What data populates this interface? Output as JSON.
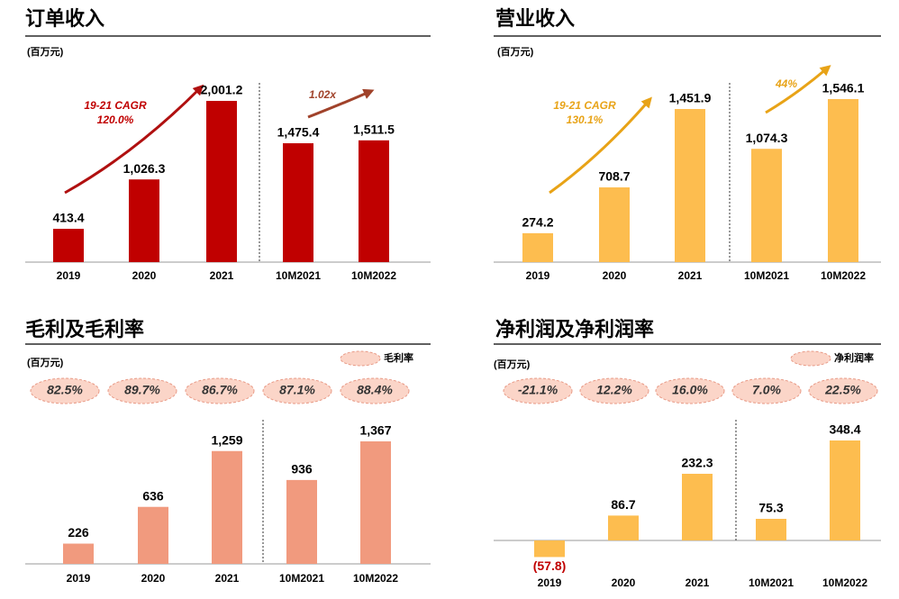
{
  "chart_data": [
    {
      "type": "bar",
      "title": "订单收入",
      "unit": "(百万元)",
      "categories": [
        "2019",
        "2020",
        "2021",
        "10M2021",
        "10M2022"
      ],
      "values": [
        413.4,
        1026.3,
        2001.2,
        1475.4,
        1511.5
      ],
      "value_labels": [
        "413.4",
        "1,026.3",
        "2,001.2",
        "1,475.4",
        "1,511.5"
      ],
      "color": "#c00000",
      "annotations": [
        "19-21 CAGR",
        "120.0%",
        "1.02x"
      ]
    },
    {
      "type": "bar",
      "title": "营业收入",
      "unit": "(百万元)",
      "categories": [
        "2019",
        "2020",
        "2021",
        "10M2021",
        "10M2022"
      ],
      "values": [
        274.2,
        708.7,
        1451.9,
        1074.3,
        1546.1
      ],
      "value_labels": [
        "274.2",
        "708.7",
        "1,451.9",
        "1,074.3",
        "1,546.1"
      ],
      "color": "#fdbd4f",
      "annotations": [
        "19-21 CAGR",
        "130.1%",
        "44%"
      ]
    },
    {
      "type": "bar",
      "title": "毛利及毛利率",
      "unit": "(百万元)",
      "categories": [
        "2019",
        "2020",
        "2021",
        "10M2021",
        "10M2022"
      ],
      "values": [
        226,
        636,
        1259,
        936,
        1367
      ],
      "value_labels": [
        "226",
        "636",
        "1,259",
        "936",
        "1,367"
      ],
      "color": "#f19a7e",
      "margin": {
        "name": "毛利率",
        "values": [
          82.5,
          89.7,
          86.7,
          87.1,
          88.4
        ],
        "value_labels": [
          "82.5%",
          "89.7%",
          "86.7%",
          "87.1%",
          "88.4%"
        ]
      }
    },
    {
      "type": "bar",
      "title": "净利润及净利润率",
      "unit": "(百万元)",
      "categories": [
        "2019",
        "2020",
        "2021",
        "10M2021",
        "10M2022"
      ],
      "values": [
        -57.8,
        86.7,
        232.3,
        75.3,
        348.4
      ],
      "value_labels": [
        "(57.8)",
        "86.7",
        "232.3",
        "75.3",
        "348.4"
      ],
      "color": "#fdbd4f",
      "margin": {
        "name": "净利润率",
        "values": [
          -21.1,
          12.2,
          16.0,
          7.0,
          22.5
        ],
        "value_labels": [
          "-21.1%",
          "12.2%",
          "16.0%",
          "7.0%",
          "22.5%"
        ]
      }
    }
  ]
}
